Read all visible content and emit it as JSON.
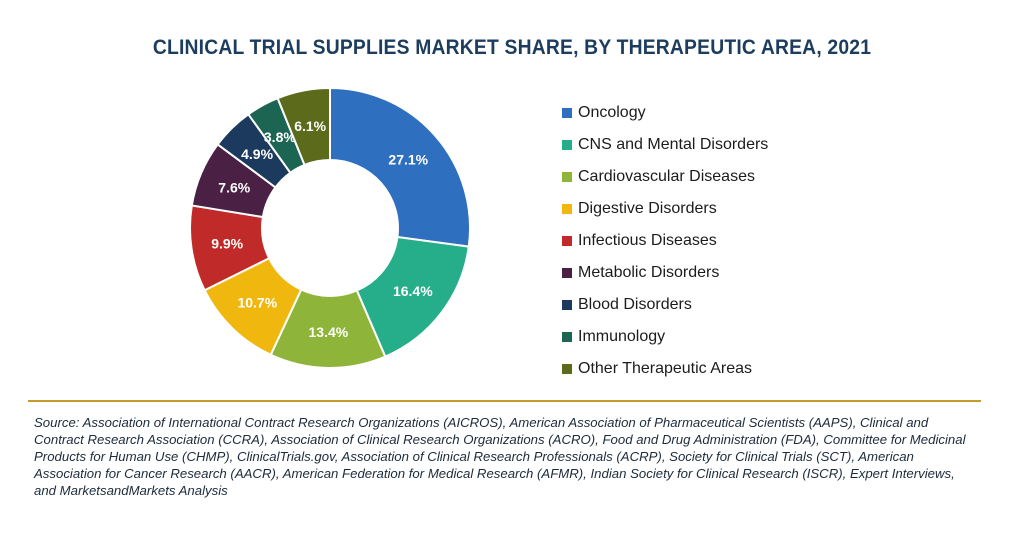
{
  "title": "CLINICAL TRIAL SUPPLIES MARKET SHARE, BY THERAPEUTIC AREA, 2021",
  "source": "Source: Association of International Contract Research Organizations (AICROS), American Association of Pharmaceutical Scientists (AAPS), Clinical and Contract Research Association (CCRA), Association of Clinical Research Organizations (ACRO), Food and Drug Administration (FDA), Committee for Medicinal Products for Human Use (CHMP), ClinicalTrials.gov, Association of Clinical Research Professionals (ACRP), Society for Clinical Trials (SCT), American Association for Cancer Research (AACR), American Federation for Medical Research (AFMR), Indian Society for Clinical Research (ISCR), Expert Interviews, and MarketsandMarkets Analysis",
  "chart_data": {
    "type": "pie",
    "donut": true,
    "title": "CLINICAL TRIAL SUPPLIES MARKET SHARE, BY THERAPEUTIC AREA, 2021",
    "legend_position": "right",
    "slices": [
      {
        "name": "Oncology",
        "value": 27.1,
        "label": "27.1%",
        "color": "#2e6fbf"
      },
      {
        "name": "CNS and Mental Disorders",
        "value": 16.4,
        "label": "16.4%",
        "color": "#26ae8a"
      },
      {
        "name": "Cardiovascular Diseases",
        "value": 13.4,
        "label": "13.4%",
        "color": "#8fb43a"
      },
      {
        "name": "Digestive Disorders",
        "value": 10.7,
        "label": "10.7%",
        "color": "#f0b80e"
      },
      {
        "name": "Infectious Diseases",
        "value": 9.9,
        "label": "9.9%",
        "color": "#c02a28"
      },
      {
        "name": "Metabolic Disorders",
        "value": 7.6,
        "label": "7.6%",
        "color": "#4b2045"
      },
      {
        "name": "Blood Disorders",
        "value": 4.9,
        "label": "4.9%",
        "color": "#1c3a5e"
      },
      {
        "name": "Immunology",
        "value": 3.8,
        "label": "3.8%",
        "color": "#1c6552"
      },
      {
        "name": "Other Therapeutic Areas",
        "value": 6.1,
        "label": "6.1%",
        "color": "#5c6a1c"
      }
    ]
  }
}
